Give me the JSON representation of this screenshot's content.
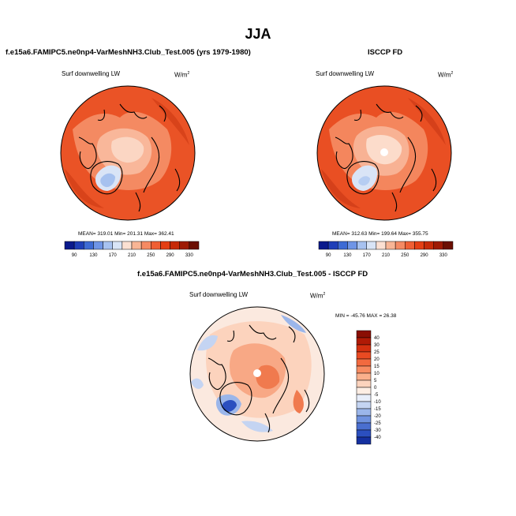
{
  "page_title": "JJA",
  "panels": [
    {
      "heading": "f.e15a6.FAMIPC5.ne0np4-VarMeshNH3.Club_Test.005 (yrs 1979-1980)",
      "field_label": "Surf downwelling LW",
      "units": "W/m",
      "units_sup": "2",
      "stats": "MEAN= 319.01  Min= 201.31  Max= 362.41"
    },
    {
      "heading": "ISCCP FD",
      "field_label": "Surf downwelling LW",
      "units": "W/m",
      "units_sup": "2",
      "stats": "MEAN= 312.63  Min= 199.64  Max= 355.75"
    },
    {
      "heading": "f.e15a6.FAMIPC5.ne0np4-VarMeshNH3.Club_Test.005 - ISCCP FD",
      "field_label": "Surf downwelling LW",
      "units": "W/m",
      "units_sup": "2",
      "stats": "MIN = -45.76 MAX =  26.38"
    }
  ],
  "chart_data": [
    {
      "type": "heatmap",
      "projection": "polar stereographic (north pole)",
      "title": "f.e15a6.FAMIPC5.ne0np4-VarMeshNH3.Club_Test.005 (yrs 1979-1980)",
      "field": "Surf downwelling LW",
      "units": "W/m2",
      "mean": 319.01,
      "min": 201.31,
      "max": 362.41,
      "colorbar": {
        "orientation": "horizontal",
        "tick_labels": [
          "90",
          "130",
          "170",
          "210",
          "250",
          "290",
          "330",
          "370"
        ],
        "colors": [
          "#0a1a8c",
          "#1f3fb8",
          "#3e6bd4",
          "#6f95e6",
          "#a7c2f0",
          "#d8e4f6",
          "#fbe0d2",
          "#f8b595",
          "#f58a63",
          "#ef5f34",
          "#e43f14",
          "#c62a08",
          "#9e1a04",
          "#6b0f03"
        ]
      }
    },
    {
      "type": "heatmap",
      "projection": "polar stereographic (north pole)",
      "title": "ISCCP FD",
      "field": "Surf downwelling LW",
      "units": "W/m2",
      "mean": 312.63,
      "min": 199.64,
      "max": 355.75,
      "colorbar": {
        "orientation": "horizontal",
        "tick_labels": [
          "90",
          "130",
          "170",
          "210",
          "250",
          "290",
          "330",
          "370"
        ],
        "colors": [
          "#0a1a8c",
          "#1f3fb8",
          "#3e6bd4",
          "#6f95e6",
          "#a7c2f0",
          "#d8e4f6",
          "#fbe0d2",
          "#f8b595",
          "#f58a63",
          "#ef5f34",
          "#e43f14",
          "#c62a08",
          "#9e1a04",
          "#6b0f03"
        ]
      }
    },
    {
      "type": "heatmap",
      "projection": "polar stereographic (north pole)",
      "title": "f.e15a6.FAMIPC5.ne0np4-VarMeshNH3.Club_Test.005 - ISCCP FD",
      "field": "Surf downwelling LW",
      "units": "W/m2",
      "min": -45.76,
      "max": 26.38,
      "colorbar": {
        "orientation": "vertical",
        "tick_labels": [
          "40",
          "30",
          "25",
          "20",
          "15",
          "10",
          "5",
          "0",
          "-5",
          "-10",
          "-15",
          "-20",
          "-25",
          "-30",
          "-40"
        ],
        "colors": [
          "#8a0e03",
          "#b01a06",
          "#d43010",
          "#ea4a22",
          "#f26a3f",
          "#f78c62",
          "#fab08c",
          "#fcd3bd",
          "#fdeee4",
          "#e8eefa",
          "#c4d4f2",
          "#9bb6ea",
          "#6f92df",
          "#4a6fd0",
          "#2b4fbf",
          "#1530a0"
        ]
      }
    }
  ]
}
